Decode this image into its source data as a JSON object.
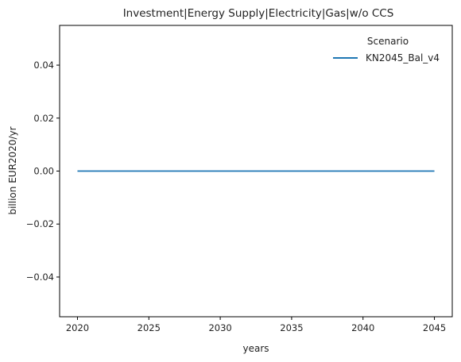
{
  "chart_data": {
    "type": "line",
    "title": "Investment|Energy Supply|Electricity|Gas|w/o CCS",
    "xlabel": "years",
    "ylabel": "billion EUR2020/yr",
    "x": [
      2020,
      2025,
      2030,
      2035,
      2040,
      2045
    ],
    "x_ticks": [
      "2020",
      "2025",
      "2030",
      "2035",
      "2040",
      "2045"
    ],
    "y_ticks": [
      "−0.04",
      "−0.02",
      "0.00",
      "0.02",
      "0.04"
    ],
    "y_tick_values": [
      -0.04,
      -0.02,
      0.0,
      0.02,
      0.04
    ],
    "xlim": [
      2018.75,
      2046.25
    ],
    "ylim": [
      -0.055,
      0.055
    ],
    "grid": false,
    "legend": {
      "title": "Scenario",
      "placement": "top-right"
    },
    "series": [
      {
        "name": "KN2045_Bal_v4",
        "color": "#1f77b4",
        "values": [
          0,
          0,
          0,
          0,
          0,
          0
        ]
      }
    ]
  }
}
